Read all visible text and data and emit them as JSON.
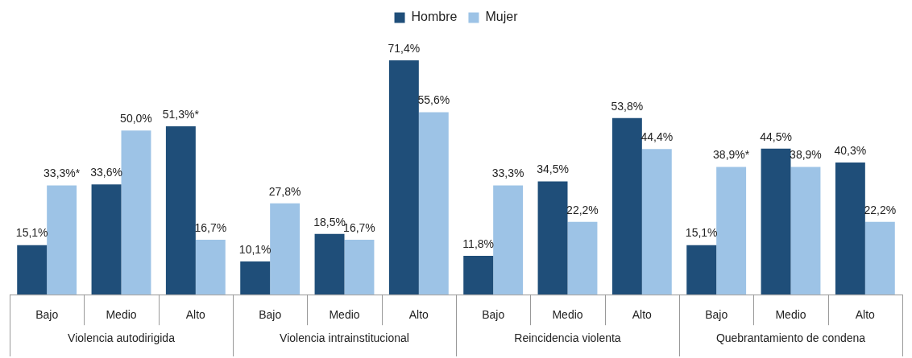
{
  "chart_data": {
    "type": "bar",
    "categories": [
      "Bajo",
      "Medio",
      "Alto",
      "Bajo",
      "Medio",
      "Alto",
      "Bajo",
      "Medio",
      "Alto",
      "Bajo",
      "Medio",
      "Alto"
    ],
    "series": [
      {
        "name": "Hombre",
        "color": "#1f4e79",
        "values": [
          15.1,
          33.6,
          51.3,
          10.1,
          18.5,
          71.4,
          11.8,
          34.5,
          53.8,
          15.1,
          44.5,
          40.3
        ],
        "value_labels": [
          "15,1%",
          "33,6%",
          "51,3%*",
          "10,1%",
          "18,5%",
          "71,4%",
          "11,8%",
          "34,5%",
          "53,8%",
          "15,1%",
          "44,5%",
          "40,3%"
        ]
      },
      {
        "name": "Mujer",
        "color": "#9dc3e6",
        "values": [
          33.3,
          50.0,
          16.7,
          27.8,
          16.7,
          55.6,
          33.3,
          22.2,
          44.4,
          38.9,
          38.9,
          22.2
        ],
        "value_labels": [
          "33,3%*",
          "50,0%",
          "16,7%",
          "27,8%",
          "16,7%",
          "55,6%",
          "33,3%",
          "22,2%",
          "44,4%",
          "38,9%*",
          "38,9%",
          "22,2%"
        ]
      }
    ],
    "legend": "top",
    "annotations": [
      "Violencia autodirigida",
      "Violencia intrainstitucional",
      "Reincidencia violenta",
      "Quebrantamiento de condena"
    ]
  }
}
